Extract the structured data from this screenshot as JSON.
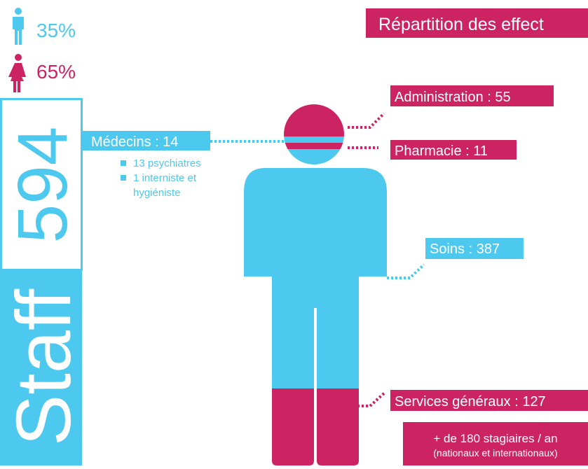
{
  "gender": {
    "men": "35%",
    "women": "65%"
  },
  "staff": {
    "total": "594",
    "label": "Staff"
  },
  "title": "Répartition des effect",
  "groups": {
    "administration": "Administration : 55",
    "pharmacie": "Pharmacie : 11",
    "medecins": "Médecins : 14",
    "medecins_details": [
      "13 psychiatres",
      "1 interniste et",
      "hygiéniste"
    ],
    "soins": "Soins : 387",
    "services": "Services généraux : 127"
  },
  "interns": {
    "main": "+ de 180 stagiaires / an",
    "sub": "(nationaux et internationaux)"
  }
}
